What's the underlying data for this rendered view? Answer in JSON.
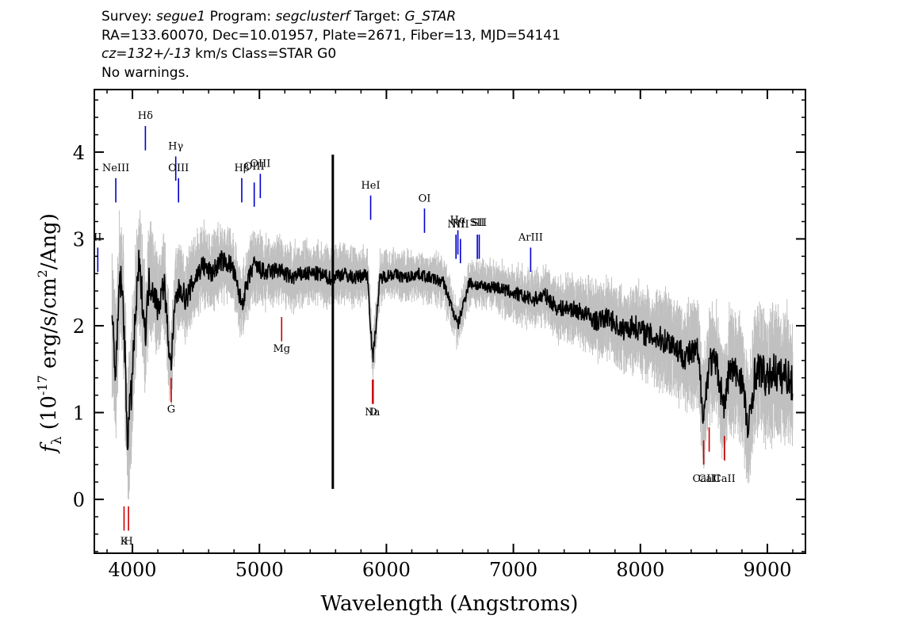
{
  "header": {
    "line1": {
      "survey_label": "Survey: ",
      "survey": "segue1",
      "program_label": " Program: ",
      "program": "segclusterf",
      "target_label": " Target: ",
      "target": "G_STAR"
    },
    "line2": "RA=133.60070, Dec=10.01957, Plate=2671, Fiber=13, MJD=54141",
    "line3": {
      "cz": "cz=132+/-13",
      "rest": " km/s Class=STAR G0"
    },
    "line4": "No warnings."
  },
  "chart_data": {
    "type": "line",
    "xlabel": "Wavelength (Angstroms)",
    "ylabel_prefix": "f",
    "ylabel_sub": "λ",
    "ylabel_open": " (10",
    "ylabel_exp": "-17",
    "ylabel_mid": " erg/s/cm",
    "ylabel_exp2": "2",
    "ylabel_close": "/Ang)",
    "xlim": [
      3700,
      9300
    ],
    "ylim": [
      -0.62,
      4.72
    ],
    "x_ticks": [
      4000,
      5000,
      6000,
      7000,
      8000,
      9000
    ],
    "x_tick_labels": [
      "4000",
      "5000",
      "6000",
      "7000",
      "8000",
      "9000"
    ],
    "y_ticks": [
      0,
      1,
      2,
      3,
      4
    ],
    "y_tick_labels": [
      "0",
      "1",
      "2",
      "3",
      "4"
    ],
    "series": [
      {
        "role": "flux",
        "color": "#000000",
        "x": [
          3840,
          3870,
          3900,
          3930,
          3960,
          3990,
          4020,
          4050,
          4080,
          4101,
          4130,
          4170,
          4200,
          4250,
          4300,
          4340,
          4380,
          4420,
          4480,
          4550,
          4620,
          4700,
          4780,
          4861,
          4950,
          5050,
          5150,
          5250,
          5350,
          5450,
          5550,
          5650,
          5750,
          5850,
          5893,
          5950,
          6050,
          6150,
          6250,
          6350,
          6450,
          6563,
          6650,
          6750,
          6850,
          6950,
          7050,
          7150,
          7250,
          7350,
          7450,
          7550,
          7650,
          7750,
          7850,
          7950,
          8050,
          8150,
          8250,
          8350,
          8450,
          8498,
          8542,
          8600,
          8662,
          8700,
          8750,
          8800,
          8850,
          8900,
          8950,
          9000,
          9050,
          9100,
          9150,
          9200
        ],
        "y": [
          2.1,
          1.4,
          2.6,
          2.2,
          0.7,
          1.2,
          2.0,
          2.7,
          2.3,
          1.9,
          2.5,
          2.4,
          2.2,
          2.5,
          1.5,
          2.3,
          2.45,
          2.3,
          2.5,
          2.7,
          2.6,
          2.75,
          2.7,
          2.25,
          2.7,
          2.6,
          2.65,
          2.55,
          2.6,
          2.6,
          2.55,
          2.6,
          2.55,
          2.6,
          1.6,
          2.55,
          2.6,
          2.55,
          2.6,
          2.55,
          2.5,
          2.0,
          2.5,
          2.45,
          2.45,
          2.4,
          2.35,
          2.3,
          2.35,
          2.2,
          2.2,
          2.15,
          2.05,
          2.1,
          1.95,
          2.0,
          1.9,
          1.85,
          1.8,
          1.65,
          1.7,
          0.95,
          1.6,
          1.55,
          1.05,
          1.5,
          1.45,
          1.4,
          0.75,
          1.45,
          1.5,
          1.35,
          1.5,
          1.4,
          1.45,
          1.3
        ]
      },
      {
        "role": "noise",
        "color": "#c0c0c0",
        "x": [
          3840,
          4000,
          4200,
          4400,
          4600,
          4800,
          5000,
          5200,
          5400,
          5600,
          5800,
          6000,
          6200,
          6400,
          6600,
          6800,
          7000,
          7200,
          7400,
          7600,
          7800,
          8000,
          8200,
          8400,
          8600,
          8800,
          9000,
          9200
        ],
        "band": [
          0.55,
          0.5,
          0.38,
          0.32,
          0.28,
          0.26,
          0.25,
          0.22,
          0.2,
          0.2,
          0.18,
          0.17,
          0.16,
          0.16,
          0.15,
          0.16,
          0.18,
          0.2,
          0.22,
          0.25,
          0.28,
          0.32,
          0.35,
          0.38,
          0.42,
          0.45,
          0.5,
          0.5
        ]
      }
    ],
    "spike": {
      "x": 5578,
      "y_top": 3.97,
      "y_bottom": 0.12
    },
    "emission_lines": [
      {
        "label": "NeIII",
        "x": 3869,
        "y1": 3.42,
        "y2": 3.7,
        "label_y": 3.78
      },
      {
        "label": "Hδ",
        "x": 4102,
        "y1": 4.02,
        "y2": 4.3,
        "label_y": 4.38
      },
      {
        "label": "Hγ",
        "x": 4341,
        "y1": 3.67,
        "y2": 3.95,
        "label_y": 4.03
      },
      {
        "label": "OIII",
        "x": 4363,
        "y1": 3.42,
        "y2": 3.7,
        "label_y": 3.78
      },
      {
        "label": "Hβ",
        "x": 4861,
        "y1": 3.42,
        "y2": 3.7,
        "label_y": 3.78
      },
      {
        "label": "OIII",
        "x": 4959,
        "y1": 3.37,
        "y2": 3.65,
        "label_y": 3.8
      },
      {
        "label": "OIII",
        "x": 5007,
        "y1": 3.47,
        "y2": 3.75,
        "label_y": 3.83
      },
      {
        "label": "HeI",
        "x": 5876,
        "y1": 3.22,
        "y2": 3.5,
        "label_y": 3.58
      },
      {
        "label": "OI",
        "x": 6300,
        "y1": 3.07,
        "y2": 3.35,
        "label_y": 3.43
      },
      {
        "label": "NII",
        "x": 6548,
        "y1": 2.77,
        "y2": 3.05,
        "label_y": 3.13
      },
      {
        "label": "Hα",
        "x": 6563,
        "y1": 2.82,
        "y2": 3.1,
        "label_y": 3.18
      },
      {
        "label": "NII",
        "x": 6583,
        "y1": 2.72,
        "y2": 3.0,
        "label_y": 3.13
      },
      {
        "label": "SII",
        "x": 6716,
        "y1": 2.77,
        "y2": 3.05,
        "label_y": 3.15
      },
      {
        "label": "SII",
        "x": 6731,
        "y1": 2.77,
        "y2": 3.05,
        "label_y": 3.15
      },
      {
        "label": "ArIII",
        "x": 7136,
        "y1": 2.62,
        "y2": 2.9,
        "label_y": 2.98
      },
      {
        "label": "II",
        "x": 3727,
        "y1": 2.62,
        "y2": 2.9,
        "label_y": 2.98
      }
    ],
    "absorption_lines": [
      {
        "label": "K",
        "x": 3934,
        "y1": -0.36,
        "y2": -0.08,
        "label_y": -0.52
      },
      {
        "label": "H",
        "x": 3969,
        "y1": -0.36,
        "y2": -0.08,
        "label_y": -0.52
      },
      {
        "label": "G",
        "x": 4305,
        "y1": 1.12,
        "y2": 1.4,
        "label_y": 1.0
      },
      {
        "label": "Mg",
        "x": 5175,
        "y1": 1.82,
        "y2": 2.1,
        "label_y": 1.7
      },
      {
        "label": "Na",
        "x": 5890,
        "y1": 1.1,
        "y2": 1.38,
        "label_y": 0.97
      },
      {
        "label": "D",
        "x": 5896,
        "y1": 1.1,
        "y2": 1.38,
        "label_y": 0.97
      },
      {
        "label": "CaII",
        "x": 8498,
        "y1": 0.4,
        "y2": 0.68,
        "label_y": 0.2
      },
      {
        "label": "CaII",
        "x": 8542,
        "y1": 0.55,
        "y2": 0.83,
        "label_y": 0.2
      },
      {
        "label": "CaII",
        "x": 8662,
        "y1": 0.45,
        "y2": 0.73,
        "label_y": 0.2
      }
    ],
    "colors": {
      "emission": "#0000cc",
      "absorption": "#cc0000",
      "flux": "#000000",
      "noise": "#c0c0c0"
    }
  }
}
